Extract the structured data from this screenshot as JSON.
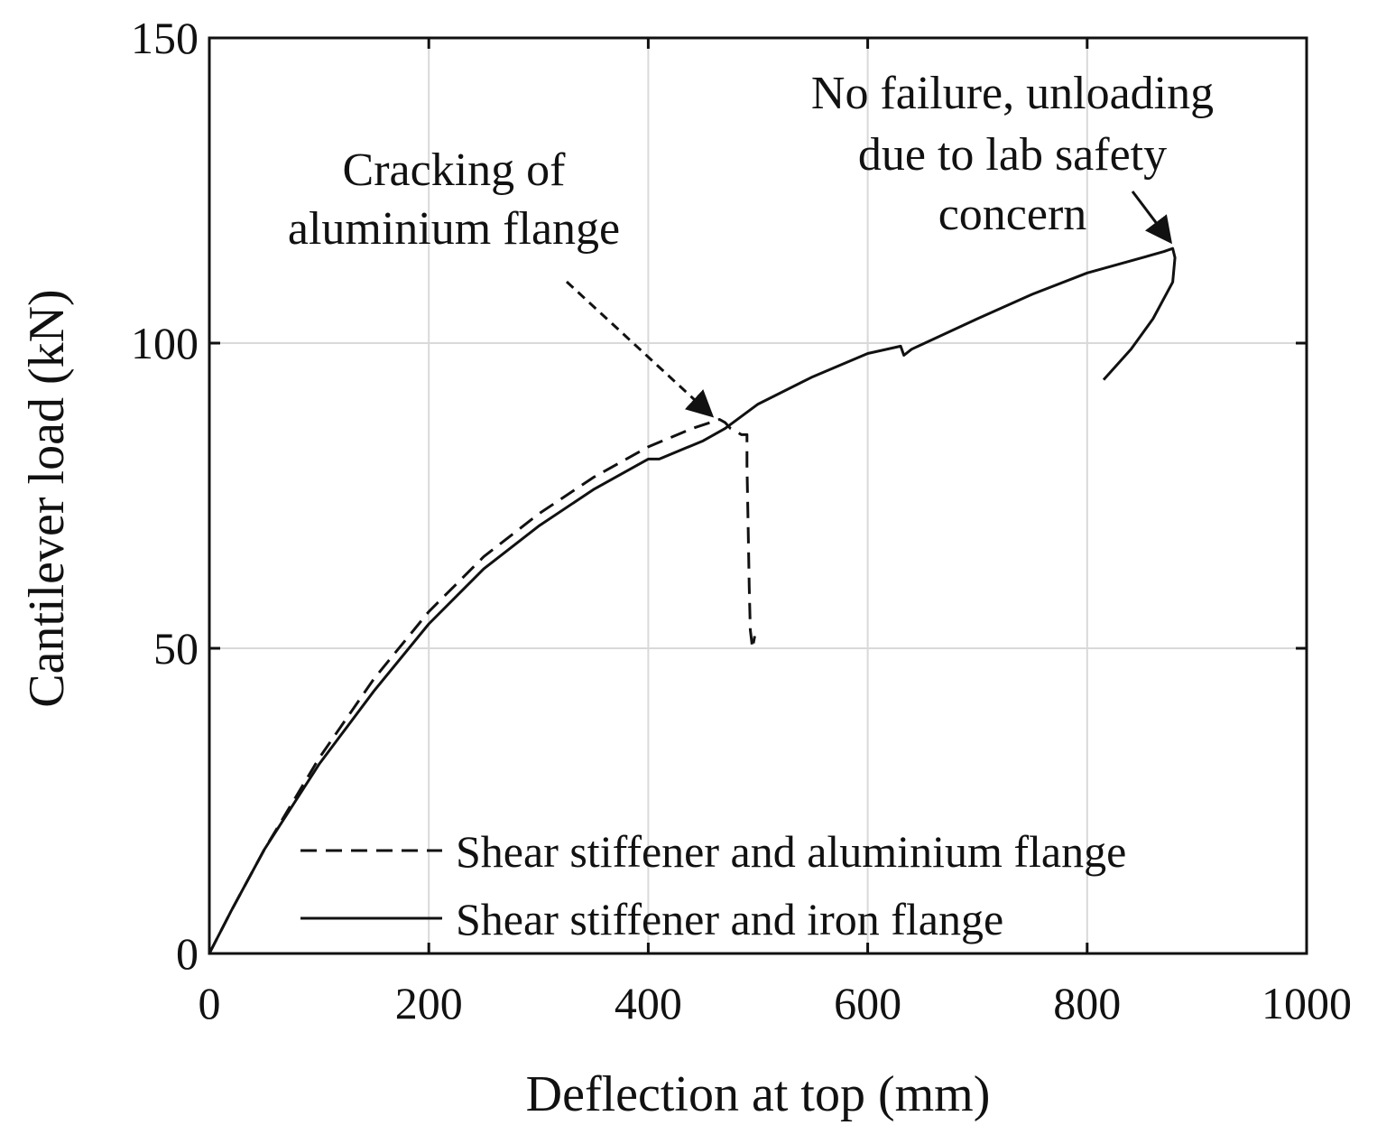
{
  "chart_data": {
    "type": "line",
    "title": "",
    "xlabel": "Deflection at top (mm)",
    "ylabel": "Cantilever load (kN)",
    "xlim": [
      0,
      1000
    ],
    "ylim": [
      0,
      150
    ],
    "xticks": [
      "0",
      "200",
      "400",
      "600",
      "800",
      "1000"
    ],
    "yticks": [
      "0",
      "50",
      "100",
      "150"
    ],
    "grid": true,
    "legend_position": "bottom-right",
    "series": [
      {
        "name": "Shear stiffener and aluminium flange",
        "style": "dashed",
        "x": [
          0,
          20,
          50,
          100,
          150,
          200,
          250,
          300,
          350,
          400,
          440,
          465,
          470,
          475,
          485,
          490,
          490,
          491,
          492,
          493,
          495,
          497
        ],
        "y": [
          0,
          7,
          17,
          32,
          45,
          56,
          65,
          72,
          78,
          83,
          86,
          87.5,
          87,
          86,
          85,
          85,
          80,
          70,
          60,
          53,
          50,
          52
        ]
      },
      {
        "name": "Shear stiffener and iron flange",
        "style": "solid",
        "x": [
          0,
          20,
          50,
          100,
          150,
          200,
          250,
          300,
          350,
          390,
          400,
          410,
          450,
          470,
          500,
          550,
          600,
          630,
          633,
          640,
          700,
          750,
          800,
          850,
          870,
          878,
          880,
          878,
          860,
          840,
          815
        ],
        "y": [
          0,
          7,
          17,
          31,
          43,
          54,
          63,
          70,
          76,
          80,
          81,
          81,
          84,
          86,
          90,
          94.5,
          98.3,
          99.5,
          98,
          99,
          104,
          108,
          111.5,
          114,
          115,
          115.5,
          114,
          110,
          104,
          99,
          94
        ]
      }
    ],
    "annotations": [
      {
        "lines": [
          "Cracking of",
          "aluminium flange"
        ],
        "target": [
          458,
          87.5
        ],
        "arrow_style": "dashed"
      },
      {
        "lines": [
          "No failure, unloading",
          "due to lab safety",
          "concern"
        ],
        "target": [
          876,
          116
        ],
        "arrow_style": "solid"
      }
    ]
  }
}
